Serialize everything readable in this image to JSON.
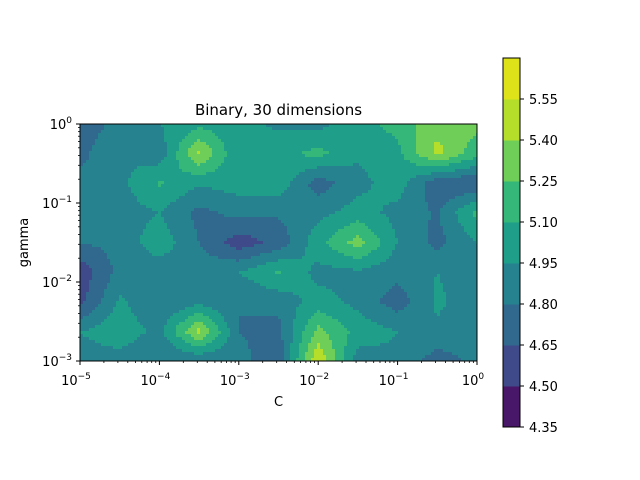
{
  "chart_data": {
    "type": "heatmap",
    "title": "Binary, 30 dimensions",
    "xlabel": "C",
    "ylabel": "gamma",
    "xscale": "log",
    "yscale": "log",
    "xlim": [
      1e-05,
      1
    ],
    "ylim": [
      0.001,
      1
    ],
    "x_ticks": [
      {
        "value": 1e-05,
        "base": "10",
        "exp": "−5"
      },
      {
        "value": 0.0001,
        "base": "10",
        "exp": "−4"
      },
      {
        "value": 0.001,
        "base": "10",
        "exp": "−3"
      },
      {
        "value": 0.01,
        "base": "10",
        "exp": "−2"
      },
      {
        "value": 0.1,
        "base": "10",
        "exp": "−1"
      },
      {
        "value": 1,
        "base": "10",
        "exp": "0"
      }
    ],
    "y_ticks": [
      {
        "value": 0.001,
        "base": "10",
        "exp": "−3"
      },
      {
        "value": 0.01,
        "base": "10",
        "exp": "−2"
      },
      {
        "value": 0.1,
        "base": "10",
        "exp": "−1"
      },
      {
        "value": 1,
        "base": "10",
        "exp": "0"
      }
    ],
    "colorbar": {
      "levels": [
        4.35,
        4.5,
        4.65,
        4.8,
        4.95,
        5.1,
        5.25,
        5.4,
        5.55
      ],
      "tick_labels": [
        "4.35",
        "4.50",
        "4.65",
        "4.80",
        "4.95",
        "5.10",
        "5.25",
        "5.40",
        "5.55"
      ],
      "colors": [
        "#481769",
        "#3e4a89",
        "#31688e",
        "#26828e",
        "#1f9e89",
        "#35b779",
        "#6ece58",
        "#b5de2b",
        "#dde318"
      ]
    },
    "x": [
      1e-05,
      3.16e-05,
      0.0001,
      0.000316,
      0.001,
      0.00316,
      0.01,
      0.0316,
      0.1,
      0.316,
      1
    ],
    "y": [
      0.001,
      0.00237,
      0.00562,
      0.0133,
      0.0316,
      0.075,
      0.178,
      0.422,
      1
    ],
    "z": [
      [
        4.88,
        4.88,
        4.8,
        4.8,
        4.85,
        4.7,
        5.55,
        4.86,
        4.92,
        4.72,
        4.85
      ],
      [
        4.95,
        5.05,
        4.9,
        5.45,
        4.8,
        4.75,
        5.3,
        5.05,
        4.95,
        4.92,
        4.85
      ],
      [
        4.6,
        4.98,
        4.8,
        4.9,
        4.8,
        4.85,
        5.02,
        4.9,
        4.72,
        4.98,
        4.85
      ],
      [
        4.55,
        4.85,
        4.85,
        4.88,
        4.95,
        5.12,
        4.9,
        4.92,
        4.85,
        4.95,
        4.88
      ],
      [
        4.8,
        4.85,
        5.05,
        4.8,
        4.56,
        4.7,
        5.05,
        5.32,
        4.95,
        4.75,
        4.95
      ],
      [
        4.88,
        4.88,
        4.95,
        4.75,
        4.85,
        4.82,
        4.9,
        5.02,
        4.9,
        4.78,
        5.15
      ],
      [
        4.85,
        4.9,
        5.12,
        4.97,
        5.02,
        5.05,
        4.72,
        4.9,
        5.03,
        4.68,
        4.65
      ],
      [
        4.75,
        4.95,
        4.85,
        5.43,
        4.95,
        5.05,
        5.15,
        4.97,
        5.05,
        5.45,
        5.15
      ],
      [
        4.7,
        4.85,
        4.95,
        5.05,
        5.0,
        4.92,
        4.9,
        5.05,
        5.15,
        5.35,
        5.3
      ]
    ]
  }
}
